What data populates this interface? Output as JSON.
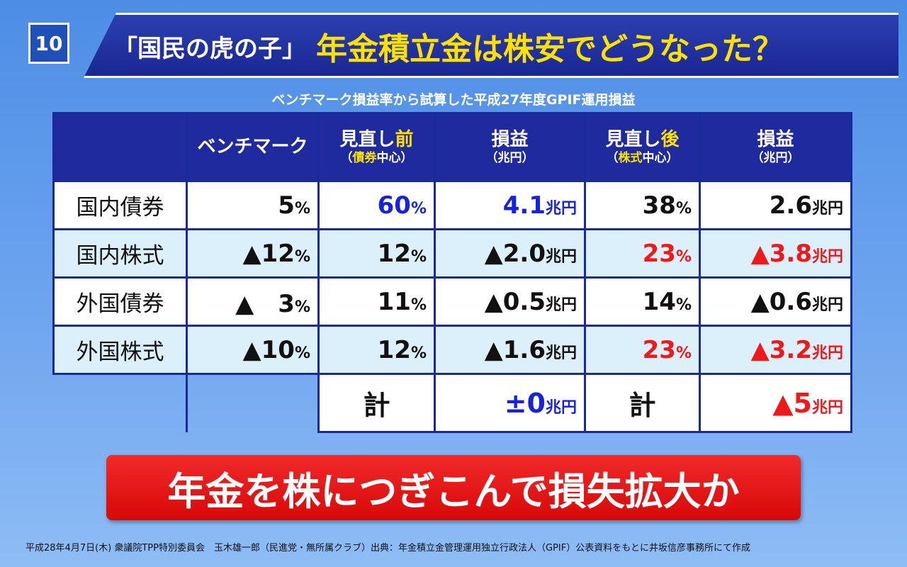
{
  "slide_number": "10",
  "title": {
    "prefix": "「国民の虎の子」",
    "main": "年金積立金は株安でどうなった？"
  },
  "subtitle": "ベンチマーク損益率から試算した平成27年度GPIF運用損益",
  "headers": {
    "benchmark": "ベンチマーク",
    "before_a": "見直し",
    "before_b": "前",
    "before_note_a": "（",
    "before_note_b": "債券",
    "before_note_c": "中心）",
    "pl1_a": "損益",
    "pl1_b": "（兆円）",
    "after_a": "見直し",
    "after_b": "後",
    "after_note_a": "（",
    "after_note_b": "株式",
    "after_note_c": "中心）",
    "pl2_a": "損益",
    "pl2_b": "（兆円）"
  },
  "rows": [
    {
      "label": "国内債券",
      "benchmark": "5",
      "before": "60",
      "pl_before": "4.1",
      "after": "38",
      "pl_after": "2.6"
    },
    {
      "label": "国内株式",
      "benchmark": "▲12",
      "before": "12",
      "pl_before": "▲2.0",
      "after": "23",
      "pl_after": "▲3.8"
    },
    {
      "label": "外国債券",
      "benchmark": "▲　3",
      "before": "11",
      "pl_before": "▲0.5",
      "after": "14",
      "pl_after": "▲0.6"
    },
    {
      "label": "外国株式",
      "benchmark": "▲10",
      "before": "12",
      "pl_before": "▲1.6",
      "after": "23",
      "pl_after": "▲3.2"
    }
  ],
  "units": {
    "percent": "%",
    "yen": "兆円"
  },
  "total": {
    "label": "計",
    "before_value": "±0",
    "after_label": "計",
    "after_value": "▲5"
  },
  "conclusion": "年金を株につぎこんで損失拡大か",
  "footer": "平成28年4月7日(木) 衆議院TPP特別委員会　玉木雄一郎（民進党・無所属クラブ）出典：年金積立金管理運用独立行政法人（GPIF）公表資料をもとに井坂信彦事務所にて作成",
  "colors": {
    "blue": "#1622e0",
    "red": "#f01818",
    "header_bg": "#1e2a9e",
    "title_yellow": "#ffe100"
  }
}
